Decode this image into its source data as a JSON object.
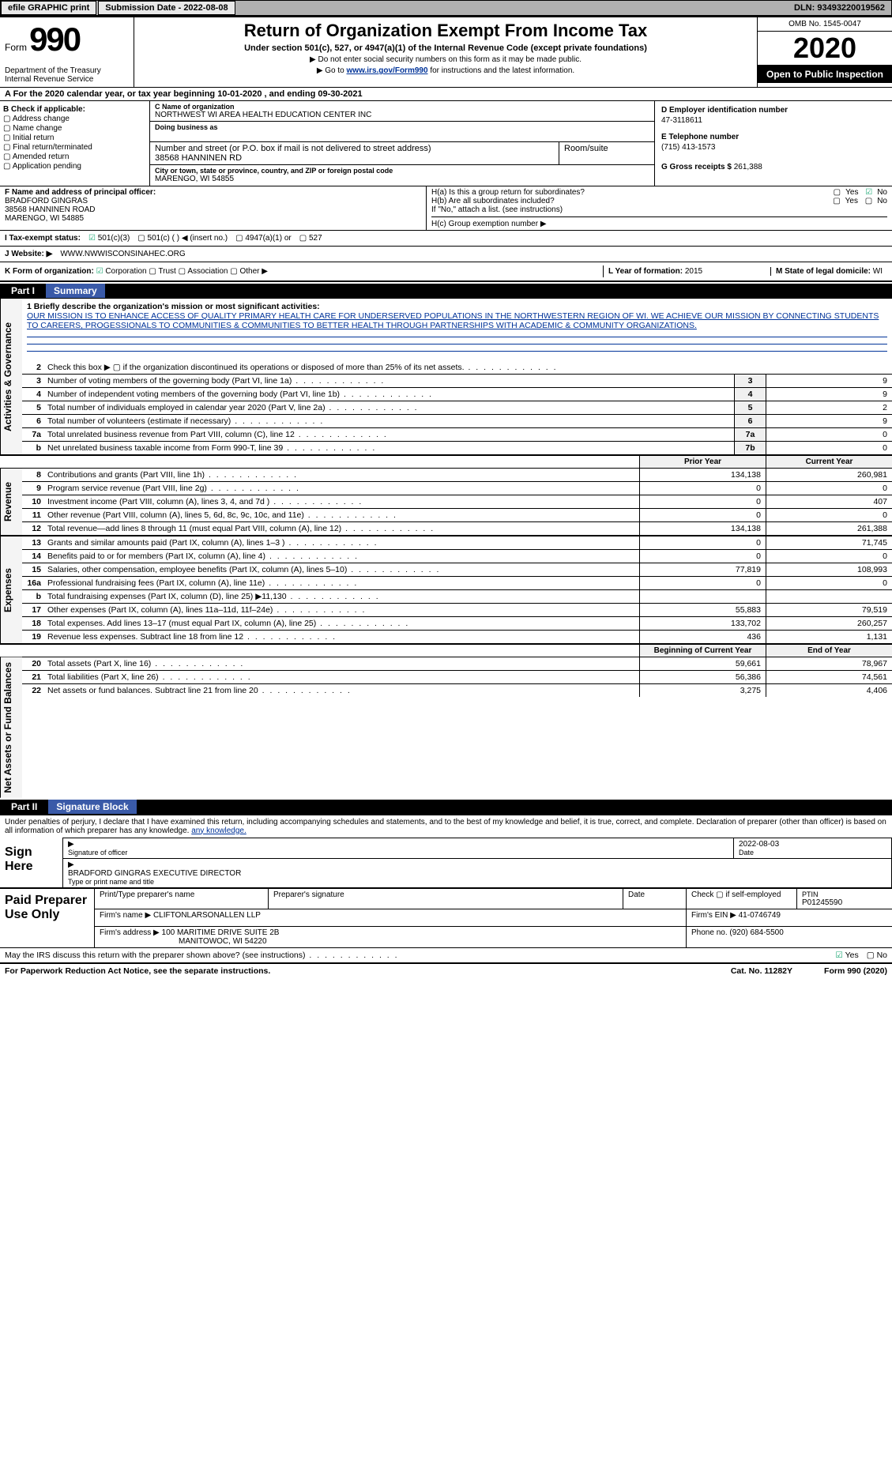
{
  "colors": {
    "link_blue": "#003399",
    "header_blue": "#3a5aa8",
    "black": "#000000",
    "gray_bar": "#b0b0b0",
    "light_gray": "#e8e8e8",
    "side_bg": "#f4f4f4",
    "cell_bg": "#f0f0f0",
    "check_green": "#22aa77"
  },
  "topbar": {
    "efile_btn": "efile GRAPHIC print",
    "submission_label": "Submission Date - 2022-08-08",
    "dln_label": "DLN: 93493220019562"
  },
  "header": {
    "form_word": "Form",
    "form_number": "990",
    "title": "Return of Organization Exempt From Income Tax",
    "subtitle": "Under section 501(c), 527, or 4947(a)(1) of the Internal Revenue Code (except private foundations)",
    "note_ssn": "▶ Do not enter social security numbers on this form as it may be made public.",
    "note_link_prefix": "▶ Go to ",
    "note_link": "www.irs.gov/Form990",
    "note_link_suffix": " for instructions and the latest information.",
    "dept": "Department of the Treasury\nInternal Revenue Service",
    "omb": "OMB No. 1545-0047",
    "year": "2020",
    "inspect": "Open to Public Inspection"
  },
  "period": {
    "line": "A For the 2020 calendar year, or tax year beginning 10-01-2020   , and ending 09-30-2021"
  },
  "sectionB": {
    "heading": "B Check if applicable:",
    "items": [
      "Address change",
      "Name change",
      "Initial return",
      "Final return/terminated",
      "Amended return",
      "Application pending"
    ]
  },
  "sectionC": {
    "name_lbl": "C Name of organization",
    "name": "NORTHWEST WI AREA HEALTH EDUCATION CENTER INC",
    "dba_lbl": "Doing business as",
    "dba": "",
    "street_lbl": "Number and street (or P.O. box if mail is not delivered to street address)",
    "room_lbl": "Room/suite",
    "street": "38568 HANNINEN RD",
    "city_lbl": "City or town, state or province, country, and ZIP or foreign postal code",
    "city": "MARENGO, WI  54855"
  },
  "sectionD": {
    "lbl": "D Employer identification number",
    "val": "47-3118611"
  },
  "sectionE": {
    "lbl": "E Telephone number",
    "val": "(715) 413-1573"
  },
  "sectionG": {
    "lbl": "G Gross receipts $",
    "val": "261,388"
  },
  "sectionF": {
    "lbl": "F Name and address of principal officer:",
    "name": "BRADFORD GINGRAS",
    "street": "38568 HANNINEN ROAD",
    "city": "MARENGO, WI  54885"
  },
  "sectionH": {
    "a_lbl": "H(a)  Is this a group return for subordinates?",
    "a_yes": "Yes",
    "a_no": "No",
    "a_checked": "No",
    "b_lbl": "H(b)  Are all subordinates included?",
    "b_yes": "Yes",
    "b_no": "No",
    "b_note": "If \"No,\" attach a list. (see instructions)",
    "c_lbl": "H(c)  Group exemption number ▶"
  },
  "sectionI": {
    "lbl": "I   Tax-exempt status:",
    "opt_501c3": "501(c)(3)",
    "opt_501c": "501(c) (  ) ◀ (insert no.)",
    "opt_4947": "4947(a)(1) or",
    "opt_527": "527",
    "checked": "501c3"
  },
  "sectionJ": {
    "lbl": "J   Website: ▶",
    "val": "WWW.NWWISCONSINAHEC.ORG"
  },
  "sectionK": {
    "lbl": "K Form of organization:",
    "opts": [
      "Corporation",
      "Trust",
      "Association",
      "Other ▶"
    ],
    "checked": "Corporation"
  },
  "sectionL": {
    "lbl": "L Year of formation:",
    "val": "2015"
  },
  "sectionM": {
    "lbl": "M State of legal domicile:",
    "val": "WI"
  },
  "part1": {
    "part_num": "Part I",
    "part_title": "Summary",
    "side_labels": {
      "gov": "Activities & Governance",
      "rev": "Revenue",
      "exp": "Expenses",
      "net": "Net Assets or Fund Balances"
    },
    "q1_lbl": "1  Briefly describe the organization's mission or most significant activities:",
    "mission": "OUR MISSION IS TO ENHANCE ACCESS OF QUALITY PRIMARY HEALTH CARE FOR UNDERSERVED POPULATIONS IN THE NORTHWESTERN REGION OF WI. WE ACHIEVE OUR MISSION BY CONNECTING STUDENTS TO CAREERS, PROGESSIONALS TO COMMUNITIES & COMMUNITIES TO BETTER HEALTH THROUGH PARTNERSHIPS WITH ACADEMIC & COMMUNITY ORGANIZATIONS.",
    "rows_gov": [
      {
        "n": "2",
        "d": "Check this box ▶ ▢ if the organization discontinued its operations or disposed of more than 25% of its net assets.",
        "lab": "",
        "v": ""
      },
      {
        "n": "3",
        "d": "Number of voting members of the governing body (Part VI, line 1a)",
        "lab": "3",
        "v": "9"
      },
      {
        "n": "4",
        "d": "Number of independent voting members of the governing body (Part VI, line 1b)",
        "lab": "4",
        "v": "9"
      },
      {
        "n": "5",
        "d": "Total number of individuals employed in calendar year 2020 (Part V, line 2a)",
        "lab": "5",
        "v": "2"
      },
      {
        "n": "6",
        "d": "Total number of volunteers (estimate if necessary)",
        "lab": "6",
        "v": "9"
      },
      {
        "n": "7a",
        "d": "Total unrelated business revenue from Part VIII, column (C), line 12",
        "lab": "7a",
        "v": "0"
      },
      {
        "n": "b",
        "d": "Net unrelated business taxable income from Form 990-T, line 39",
        "lab": "7b",
        "v": "0"
      }
    ],
    "col_head_prior": "Prior Year",
    "col_head_current": "Current Year",
    "rows_rev": [
      {
        "n": "8",
        "d": "Contributions and grants (Part VIII, line 1h)",
        "p": "134,138",
        "c": "260,981"
      },
      {
        "n": "9",
        "d": "Program service revenue (Part VIII, line 2g)",
        "p": "0",
        "c": "0"
      },
      {
        "n": "10",
        "d": "Investment income (Part VIII, column (A), lines 3, 4, and 7d )",
        "p": "0",
        "c": "407"
      },
      {
        "n": "11",
        "d": "Other revenue (Part VIII, column (A), lines 5, 6d, 8c, 9c, 10c, and 11e)",
        "p": "0",
        "c": "0"
      },
      {
        "n": "12",
        "d": "Total revenue—add lines 8 through 11 (must equal Part VIII, column (A), line 12)",
        "p": "134,138",
        "c": "261,388"
      }
    ],
    "rows_exp": [
      {
        "n": "13",
        "d": "Grants and similar amounts paid (Part IX, column (A), lines 1–3 )",
        "p": "0",
        "c": "71,745"
      },
      {
        "n": "14",
        "d": "Benefits paid to or for members (Part IX, column (A), line 4)",
        "p": "0",
        "c": "0"
      },
      {
        "n": "15",
        "d": "Salaries, other compensation, employee benefits (Part IX, column (A), lines 5–10)",
        "p": "77,819",
        "c": "108,993"
      },
      {
        "n": "16a",
        "d": "Professional fundraising fees (Part IX, column (A), line 11e)",
        "p": "0",
        "c": "0"
      },
      {
        "n": "b",
        "d": "Total fundraising expenses (Part IX, column (D), line 25) ▶11,130",
        "p": "",
        "c": ""
      },
      {
        "n": "17",
        "d": "Other expenses (Part IX, column (A), lines 11a–11d, 11f–24e)",
        "p": "55,883",
        "c": "79,519"
      },
      {
        "n": "18",
        "d": "Total expenses. Add lines 13–17 (must equal Part IX, column (A), line 25)",
        "p": "133,702",
        "c": "260,257"
      },
      {
        "n": "19",
        "d": "Revenue less expenses. Subtract line 18 from line 12",
        "p": "436",
        "c": "1,131"
      }
    ],
    "col_head_begin": "Beginning of Current Year",
    "col_head_end": "End of Year",
    "rows_net": [
      {
        "n": "20",
        "d": "Total assets (Part X, line 16)",
        "p": "59,661",
        "c": "78,967"
      },
      {
        "n": "21",
        "d": "Total liabilities (Part X, line 26)",
        "p": "56,386",
        "c": "74,561"
      },
      {
        "n": "22",
        "d": "Net assets or fund balances. Subtract line 21 from line 20",
        "p": "3,275",
        "c": "4,406"
      }
    ]
  },
  "part2": {
    "part_num": "Part II",
    "part_title": "Signature Block",
    "declaration": "Under penalties of perjury, I declare that I have examined this return, including accompanying schedules and statements, and to the best of my knowledge and belief, it is true, correct, and complete. Declaration of preparer (other than officer) is based on all information of which preparer has any knowledge.",
    "sign_here": "Sign Here",
    "sig_of_officer": "Signature of officer",
    "sig_date": "2022-08-03",
    "date_lbl": "Date",
    "officer_name_title": "BRADFORD GINGRAS  EXECUTIVE DIRECTOR",
    "type_name_lbl": "Type or print name and title",
    "paid_lbl": "Paid Preparer Use Only",
    "prep_name_lbl": "Print/Type preparer's name",
    "prep_sig_lbl": "Preparer's signature",
    "prep_date_lbl": "Date",
    "prep_self_lbl": "Check ▢ if self-employed",
    "ptin_lbl": "PTIN",
    "ptin": "P01245590",
    "firm_name_lbl": "Firm's name    ▶",
    "firm_name": "CLIFTONLARSONALLEN LLP",
    "firm_ein_lbl": "Firm's EIN ▶",
    "firm_ein": "41-0746749",
    "firm_addr_lbl": "Firm's address ▶",
    "firm_addr1": "100 MARITIME DRIVE SUITE 2B",
    "firm_addr2": "MANITOWOC, WI  54220",
    "firm_phone_lbl": "Phone no.",
    "firm_phone": "(920) 684-5500",
    "discuss": "May the IRS discuss this return with the preparer shown above? (see instructions)",
    "discuss_yes": "Yes",
    "discuss_no": "No",
    "discuss_checked": "Yes"
  },
  "footer": {
    "pra": "For Paperwork Reduction Act Notice, see the separate instructions.",
    "cat": "Cat. No. 11282Y",
    "form": "Form 990 (2020)"
  }
}
